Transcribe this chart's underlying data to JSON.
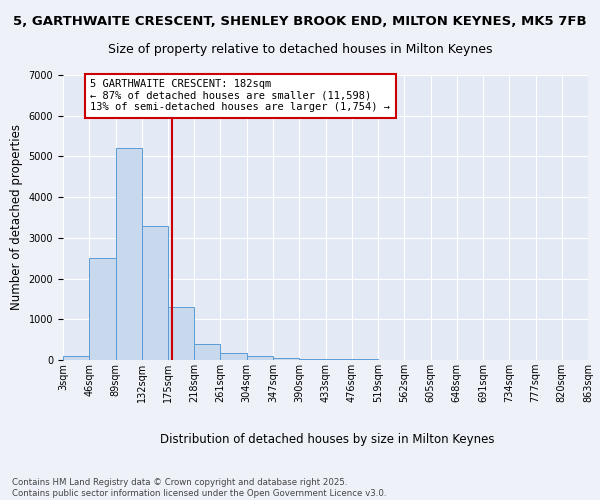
{
  "title_line1": "5, GARTHWAITE CRESCENT, SHENLEY BROOK END, MILTON KEYNES, MK5 7FB",
  "title_line2": "Size of property relative to detached houses in Milton Keynes",
  "xlabel": "Distribution of detached houses by size in Milton Keynes",
  "ylabel": "Number of detached properties",
  "bin_edges": [
    3,
    46,
    89,
    132,
    175,
    218,
    261,
    304,
    347,
    390,
    433,
    476,
    519,
    562,
    605,
    648,
    691,
    734,
    777,
    820,
    863
  ],
  "bar_heights": [
    100,
    2500,
    5200,
    3300,
    1300,
    400,
    180,
    100,
    60,
    30,
    20,
    15,
    10,
    8,
    5,
    4,
    3,
    2,
    2,
    2
  ],
  "bar_color": "#c8d9ed",
  "bar_edge_color": "#5b9bd5",
  "property_size": 182,
  "vline_color": "#cc0000",
  "annotation_line1": "5 GARTHWAITE CRESCENT: 182sqm",
  "annotation_line2": "← 87% of detached houses are smaller (11,598)",
  "annotation_line3": "13% of semi-detached houses are larger (1,754) →",
  "annotation_box_color": "#cc0000",
  "ylim": [
    0,
    7000
  ],
  "yticks": [
    0,
    1000,
    2000,
    3000,
    4000,
    5000,
    6000,
    7000
  ],
  "background_color": "#eef2f8",
  "plot_background": "#e4eaf5",
  "grid_color": "#ffffff",
  "footer_text": "Contains HM Land Registry data © Crown copyright and database right 2025.\nContains public sector information licensed under the Open Government Licence v3.0.",
  "title_fontsize": 9.5,
  "subtitle_fontsize": 9,
  "axis_label_fontsize": 8.5,
  "tick_fontsize": 7,
  "annotation_fontsize": 7.5
}
